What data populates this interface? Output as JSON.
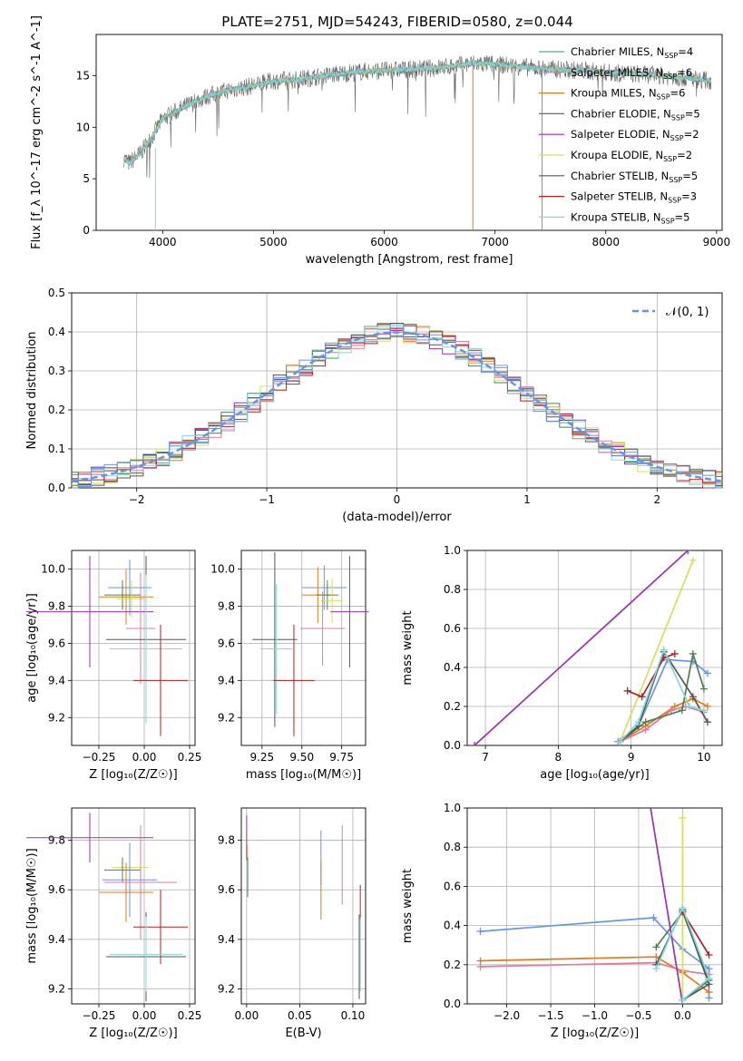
{
  "figure": {
    "title": "PLATE=2751, MJD=54243, FIBERID=0580, z=0.044"
  },
  "colors": {
    "chabrier_miles": "#5f9ea0",
    "salpeter_miles": "#e07ba0",
    "kroupa_miles": "#e07b1a",
    "chabrier_elodie": "#4f7f4f",
    "salpeter_elodie": "#9b30b0",
    "kroupa_elodie": "#d4e157",
    "chabrier_stelib": "#555555",
    "salpeter_stelib": "#b22222",
    "kroupa_stelib": "#7fdada",
    "blue_extra": "#6495ed"
  },
  "chart_data": [
    {
      "id": "spectrum",
      "type": "line",
      "title": "PLATE=2751, MJD=54243, FIBERID=0580, z=0.044",
      "xlabel": "wavelength [Angstrom, rest frame]",
      "ylabel": "Flux [f_λ 10^-17 erg cm^-2 s^-1 A^-1]",
      "xlim": [
        3400,
        9050
      ],
      "ylim": [
        0,
        19
      ],
      "xticks": [
        "4000",
        "5000",
        "6000",
        "7000",
        "8000",
        "9000"
      ],
      "yticks": [
        "0",
        "5",
        "10",
        "15"
      ],
      "legend_position": "top-right",
      "series": [
        {
          "name": "Chabrier MILES, N_SSP=4",
          "color_key": "chabrier_miles"
        },
        {
          "name": "Salpeter MILES, N_SSP=6",
          "color_key": "salpeter_miles"
        },
        {
          "name": "Kroupa MILES, N_SSP=6",
          "color_key": "kroupa_miles"
        },
        {
          "name": "Chabrier ELODIE, N_SSP=5",
          "color_key": "chabrier_elodie"
        },
        {
          "name": "Salpeter ELODIE, N_SSP=2",
          "color_key": "salpeter_elodie"
        },
        {
          "name": "Kroupa ELODIE, N_SSP=2",
          "color_key": "kroupa_elodie"
        },
        {
          "name": "Chabrier STELIB, N_SSP=5",
          "color_key": "chabrier_stelib"
        },
        {
          "name": "Salpeter STELIB, N_SSP=3",
          "color_key": "salpeter_stelib"
        },
        {
          "name": "Kroupa STELIB, N_SSP=5",
          "color_key": "kroupa_stelib"
        }
      ],
      "continuum": {
        "x": [
          3650,
          3700,
          3800,
          3900,
          4000,
          4200,
          4400,
          4600,
          4800,
          5000,
          5200,
          5400,
          5600,
          5800,
          6000,
          6200,
          6400,
          6600,
          6800,
          7000,
          7200,
          7400,
          7600,
          7800,
          8000,
          8200,
          8400,
          8600,
          8800,
          8950
        ],
        "y": [
          7.0,
          6.5,
          7.5,
          9.0,
          10.8,
          12.0,
          13.0,
          13.6,
          14.0,
          14.5,
          14.6,
          14.9,
          15.2,
          15.4,
          15.5,
          15.6,
          15.7,
          15.9,
          16.2,
          16.1,
          15.9,
          15.7,
          15.6,
          15.5,
          15.3,
          15.2,
          15.1,
          14.9,
          14.7,
          14.5
        ]
      }
    },
    {
      "id": "residuals",
      "type": "histogram",
      "xlabel": "(data-model)/error",
      "ylabel": "Normed distribution",
      "xlim": [
        -2.5,
        2.5
      ],
      "ylim": [
        0,
        0.5
      ],
      "xticks": [
        "−2",
        "−1",
        "0",
        "1",
        "2"
      ],
      "yticks": [
        "0.0",
        "0.1",
        "0.2",
        "0.3",
        "0.4",
        "0.5"
      ],
      "reference_curve": "𝒩(0, 1)",
      "legend_position": "top-right",
      "bin_width": 0.1
    },
    {
      "id": "age_vs_Z",
      "type": "scatter",
      "xlabel": "Z [log₁₀(Z/Z☉)]",
      "ylabel": "age  [log₁₀(age/yr)]",
      "xlim": [
        -0.4,
        0.28
      ],
      "ylim": [
        9.05,
        10.1
      ],
      "xticks": [
        "−0.25",
        "0.00",
        "0.25"
      ],
      "yticks": [
        "9.2",
        "9.4",
        "9.6",
        "9.8",
        "10.0"
      ],
      "points": [
        {
          "color_key": "blue_extra",
          "x": -0.08,
          "xerr": 0.12,
          "y": 9.9,
          "yerr": 0.15
        },
        {
          "color_key": "kroupa_miles",
          "x": -0.1,
          "xerr": 0.15,
          "y": 9.85,
          "yerr": 0.15
        },
        {
          "color_key": "chabrier_elodie",
          "x": -0.12,
          "xerr": 0.1,
          "y": 9.86,
          "yerr": 0.08
        },
        {
          "color_key": "kroupa_elodie",
          "x": -0.07,
          "xerr": 0.08,
          "y": 9.84,
          "yerr": 0.1
        },
        {
          "color_key": "salpeter_elodie",
          "x": -0.3,
          "xerr": 0.35,
          "y": 9.77,
          "yerr": 0.3
        },
        {
          "color_key": "salpeter_miles",
          "x": -0.02,
          "xerr": 0.08,
          "y": 9.68,
          "yerr": 0.3
        },
        {
          "color_key": "chabrier_stelib",
          "x": 0.01,
          "xerr": 0.22,
          "y": 9.62,
          "yerr": 0.45
        },
        {
          "color_key": "kroupa_stelib",
          "x": 0.01,
          "xerr": 0.2,
          "y": 9.57,
          "yerr": 0.4
        },
        {
          "color_key": "salpeter_stelib",
          "x": 0.09,
          "xerr": 0.15,
          "y": 9.4,
          "yerr": 0.3
        }
      ]
    },
    {
      "id": "age_vs_mass",
      "type": "scatter",
      "xlabel": "mass [log₁₀(M/M☉)]",
      "xlim": [
        9.12,
        9.9
      ],
      "ylim": [
        9.05,
        10.1
      ],
      "xticks": [
        "9.25",
        "9.50",
        "9.75"
      ],
      "yticks": [
        "9.2",
        "9.4",
        "9.6",
        "9.8",
        "10.0"
      ],
      "points": [
        {
          "color_key": "blue_extra",
          "x": 9.64,
          "xerr": 0.14,
          "y": 9.9,
          "yerr": 0.12
        },
        {
          "color_key": "kroupa_miles",
          "x": 9.6,
          "xerr": 0.1,
          "y": 9.86,
          "yerr": 0.15
        },
        {
          "color_key": "chabrier_elodie",
          "x": 9.66,
          "xerr": 0.07,
          "y": 9.86,
          "yerr": 0.08
        },
        {
          "color_key": "kroupa_elodie",
          "x": 9.69,
          "xerr": 0.07,
          "y": 9.83,
          "yerr": 0.12
        },
        {
          "color_key": "salpeter_elodie",
          "x": 9.8,
          "xerr": 0.12,
          "y": 9.77,
          "yerr": 0.3
        },
        {
          "color_key": "salpeter_miles",
          "x": 9.63,
          "xerr": 0.14,
          "y": 9.68,
          "yerr": 0.2
        },
        {
          "color_key": "chabrier_stelib",
          "x": 9.33,
          "xerr": 0.14,
          "y": 9.62,
          "yerr": 0.47
        },
        {
          "color_key": "kroupa_stelib",
          "x": 9.34,
          "xerr": 0.1,
          "y": 9.57,
          "yerr": 0.35
        },
        {
          "color_key": "salpeter_stelib",
          "x": 9.45,
          "xerr": 0.13,
          "y": 9.4,
          "yerr": 0.3
        }
      ]
    },
    {
      "id": "mass_weight_vs_age",
      "type": "line",
      "xlabel": "age  [log₁₀(age/yr)]",
      "ylabel": "mass weight",
      "xlim": [
        6.75,
        10.25
      ],
      "ylim": [
        0,
        1
      ],
      "xticks": [
        "7",
        "8",
        "9",
        "10"
      ],
      "yticks": [
        "0.0",
        "0.2",
        "0.4",
        "0.6",
        "0.8",
        "1.0"
      ]
    },
    {
      "id": "mass_vs_Z",
      "type": "scatter",
      "xlabel": "Z [log₁₀(Z/Z☉)]",
      "ylabel": "mass [log₁₀(M/M☉)]",
      "xlim": [
        -0.4,
        0.28
      ],
      "ylim": [
        9.14,
        9.93
      ],
      "xticks": [
        "−0.25",
        "0.00",
        "0.25"
      ],
      "yticks": [
        "9.2",
        "9.4",
        "9.6",
        "9.8"
      ],
      "points": [
        {
          "color_key": "salpeter_elodie",
          "x": -0.3,
          "xerr": 0.35,
          "y": 9.81,
          "yerr": 0.1
        },
        {
          "color_key": "kroupa_elodie",
          "x": -0.08,
          "xerr": 0.1,
          "y": 9.69,
          "yerr": 0.08
        },
        {
          "color_key": "chabrier_elodie",
          "x": -0.12,
          "xerr": 0.1,
          "y": 9.68,
          "yerr": 0.05
        },
        {
          "color_key": "blue_extra",
          "x": -0.08,
          "xerr": 0.15,
          "y": 9.64,
          "yerr": 0.15
        },
        {
          "color_key": "salpeter_miles",
          "x": -0.02,
          "xerr": 0.2,
          "y": 9.63,
          "yerr": 0.23
        },
        {
          "color_key": "kroupa_miles",
          "x": -0.1,
          "xerr": 0.15,
          "y": 9.59,
          "yerr": 0.12
        },
        {
          "color_key": "salpeter_stelib",
          "x": 0.09,
          "xerr": 0.15,
          "y": 9.45,
          "yerr": 0.15
        },
        {
          "color_key": "chabrier_stelib",
          "x": 0.01,
          "xerr": 0.22,
          "y": 9.33,
          "yerr": 0.18
        },
        {
          "color_key": "kroupa_stelib",
          "x": 0.01,
          "xerr": 0.2,
          "y": 9.34,
          "yerr": 0.15
        }
      ]
    },
    {
      "id": "mass_vs_ebv",
      "type": "scatter",
      "xlabel": "E(B-V)",
      "xlim": [
        -0.005,
        0.112
      ],
      "ylim": [
        9.14,
        9.93
      ],
      "xticks": [
        "0.00",
        "0.05",
        "0.10"
      ],
      "yticks": [
        "9.2",
        "9.4",
        "9.6",
        "9.8"
      ],
      "points": [
        {
          "color_key": "salpeter_elodie",
          "x": 0.0,
          "y": 9.81,
          "yerr": 0.09
        },
        {
          "color_key": "kroupa_elodie",
          "x": 0.001,
          "y": 9.7,
          "yerr": 0.08
        },
        {
          "color_key": "chabrier_elodie",
          "x": 0.001,
          "y": 9.65,
          "yerr": 0.08
        },
        {
          "color_key": "blue_extra",
          "x": 0.07,
          "y": 9.73,
          "yerr": 0.11
        },
        {
          "color_key": "kroupa_miles",
          "x": 0.07,
          "y": 9.6,
          "yerr": 0.12
        },
        {
          "color_key": "salpeter_miles",
          "x": 0.09,
          "y": 9.7,
          "yerr": 0.16
        },
        {
          "color_key": "salpeter_stelib",
          "x": 0.107,
          "y": 9.55,
          "yerr": 0.07
        },
        {
          "color_key": "chabrier_stelib",
          "x": 0.106,
          "y": 9.33,
          "yerr": 0.17
        },
        {
          "color_key": "kroupa_stelib",
          "x": 0.107,
          "y": 9.34,
          "yerr": 0.15
        }
      ]
    },
    {
      "id": "mass_weight_vs_Z",
      "type": "line",
      "xlabel": "Z [log₁₀(Z/Z☉)]",
      "ylabel": "mass weight",
      "xlim": [
        -2.45,
        0.45
      ],
      "ylim": [
        0,
        1
      ],
      "xticks": [
        "−2.0",
        "−1.5",
        "−1.0",
        "−0.5",
        "0.0"
      ],
      "yticks": [
        "0.0",
        "0.2",
        "0.4",
        "0.6",
        "0.8",
        "1.0"
      ]
    }
  ],
  "weights": {
    "ages": {
      "blue_extra": [
        [
          8.82,
          0.02
        ],
        [
          9.1,
          0.1
        ],
        [
          9.5,
          0.44
        ],
        [
          9.85,
          0.43
        ],
        [
          10.05,
          0.37
        ]
      ],
      "kroupa_miles": [
        [
          8.85,
          0.02
        ],
        [
          9.2,
          0.1
        ],
        [
          9.6,
          0.2
        ],
        [
          9.85,
          0.24
        ],
        [
          10.05,
          0.2
        ]
      ],
      "salpeter_miles": [
        [
          8.85,
          0.02
        ],
        [
          9.2,
          0.08
        ],
        [
          9.55,
          0.18
        ],
        [
          9.75,
          0.2
        ],
        [
          10.0,
          0.17
        ]
      ],
      "chabrier_elodie": [
        [
          8.85,
          0.02
        ],
        [
          9.2,
          0.12
        ],
        [
          9.7,
          0.18
        ],
        [
          9.85,
          0.47
        ],
        [
          10.0,
          0.29
        ]
      ],
      "salpeter_elodie": [
        [
          6.85,
          0.0
        ],
        [
          9.78,
          1.0
        ]
      ],
      "kroupa_elodie": [
        [
          8.85,
          0.02
        ],
        [
          9.85,
          0.95
        ]
      ],
      "chabrier_stelib": [
        [
          8.85,
          0.02
        ],
        [
          9.1,
          0.1
        ],
        [
          9.45,
          0.48
        ],
        [
          9.85,
          0.25
        ],
        [
          10.05,
          0.12
        ]
      ],
      "salpeter_stelib": [
        [
          8.95,
          0.28
        ],
        [
          9.15,
          0.25
        ],
        [
          9.45,
          0.45
        ],
        [
          9.6,
          0.47
        ]
      ],
      "kroupa_stelib": [
        [
          8.85,
          0.02
        ],
        [
          9.1,
          0.12
        ],
        [
          9.45,
          0.49
        ],
        [
          9.8,
          0.2
        ],
        [
          10.0,
          0.18
        ]
      ]
    },
    "metals": {
      "blue_extra": [
        [
          -2.3,
          0.37
        ],
        [
          -0.33,
          0.44
        ],
        [
          0.0,
          0.28
        ],
        [
          0.3,
          0.18
        ],
        [
          0.3,
          0.03
        ]
      ],
      "kroupa_miles": [
        [
          -2.3,
          0.22
        ],
        [
          -0.3,
          0.24
        ],
        [
          0.0,
          0.16
        ],
        [
          0.3,
          0.06
        ]
      ],
      "salpeter_miles": [
        [
          -2.3,
          0.19
        ],
        [
          -0.3,
          0.21
        ],
        [
          0.0,
          0.17
        ],
        [
          0.3,
          0.15
        ]
      ],
      "chabrier_elodie": [
        [
          -0.3,
          0.29
        ],
        [
          0.0,
          0.47
        ],
        [
          0.3,
          0.12
        ],
        [
          0.0,
          0.02
        ]
      ],
      "salpeter_elodie": [
        [
          -0.4,
          1.1
        ],
        [
          0.0,
          0.0
        ]
      ],
      "kroupa_elodie": [
        [
          0.0,
          0.95
        ],
        [
          0.0,
          0.02
        ]
      ],
      "chabrier_stelib": [
        [
          -0.3,
          0.2
        ],
        [
          0.0,
          0.48
        ],
        [
          0.3,
          0.1
        ],
        [
          0.0,
          0.02
        ]
      ],
      "salpeter_stelib": [
        [
          0.0,
          0.47
        ],
        [
          0.3,
          0.25
        ]
      ],
      "kroupa_stelib": [
        [
          -0.3,
          0.18
        ],
        [
          0.0,
          0.49
        ],
        [
          0.3,
          0.13
        ],
        [
          0.0,
          0.02
        ]
      ]
    }
  }
}
